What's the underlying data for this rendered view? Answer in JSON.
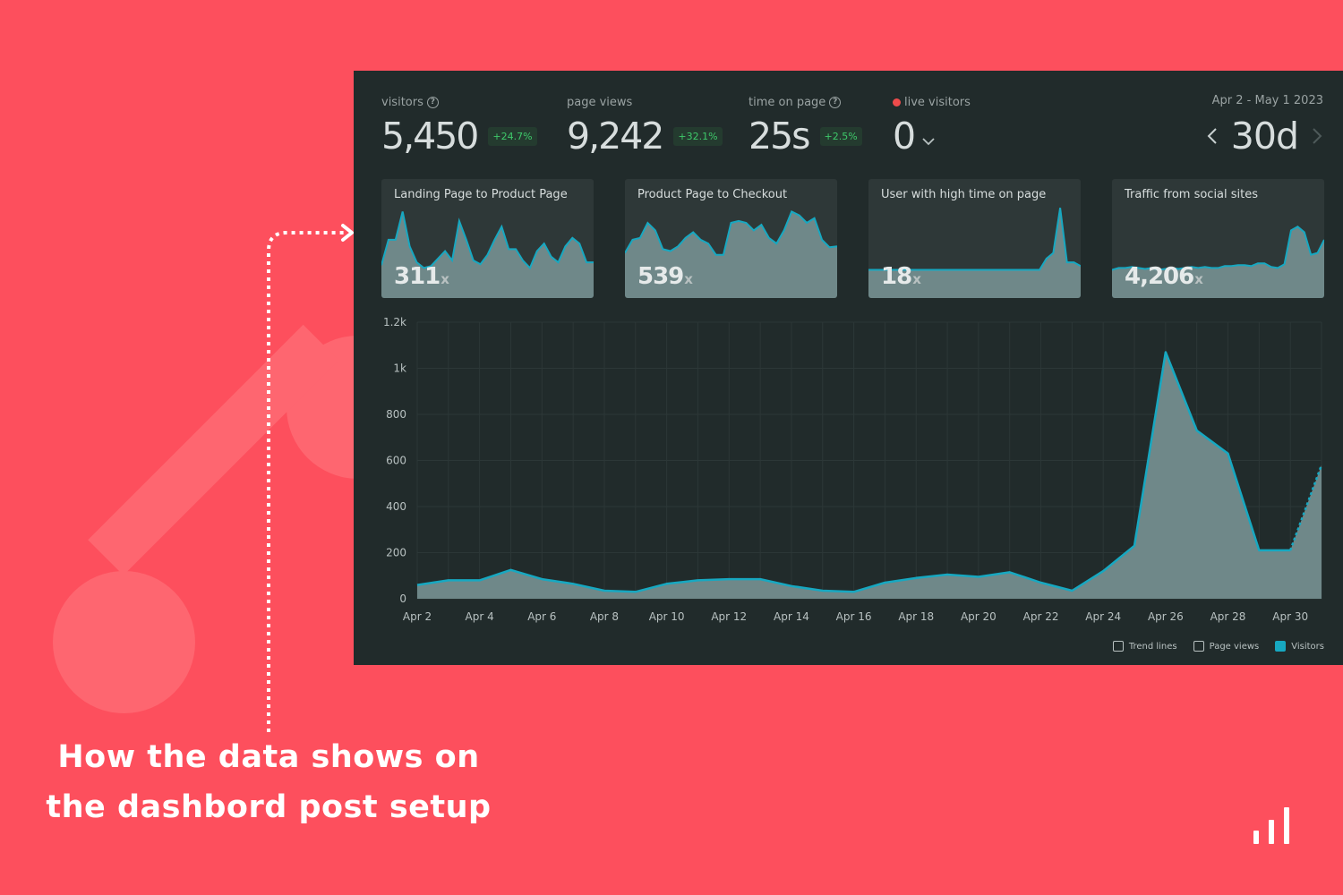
{
  "caption": {
    "line1": "How the data shows on",
    "line2": "the dashbord post setup"
  },
  "colors": {
    "background": "#fd4f5d",
    "dashboard_bg": "#212b2b",
    "accent_line": "#17a8c1",
    "area_fill": "#6f8889",
    "positive": "#3ec96a",
    "live": "#ee4b4b"
  },
  "stats": [
    {
      "label": "visitors",
      "value": "5,450",
      "change": "+24.7%",
      "help_icon": "question-circle-icon"
    },
    {
      "label": "page views",
      "value": "9,242",
      "change": "+32.1%"
    },
    {
      "label": "time on page",
      "value": "25s",
      "change": "+2.5%",
      "help_icon": "question-circle-icon"
    },
    {
      "label": "live visitors",
      "value": "0",
      "indicator": "red-dot",
      "dropdown_icon": "chevron-down-icon"
    }
  ],
  "period": {
    "range": "Apr 2 - May 1 2023",
    "value": "30d",
    "prev_icon": "chevron-left-icon",
    "next_icon": "chevron-right-icon"
  },
  "mini_cards": [
    {
      "title": "Landing Page to Product Page",
      "value": "311",
      "suffix": "x",
      "sparkline": [
        0.35,
        0.62,
        0.62,
        0.92,
        0.55,
        0.38,
        0.32,
        0.34,
        0.42,
        0.5,
        0.4,
        0.82,
        0.62,
        0.4,
        0.36,
        0.46,
        0.62,
        0.76,
        0.52,
        0.52,
        0.4,
        0.32,
        0.5,
        0.58,
        0.44,
        0.38,
        0.55,
        0.64,
        0.58,
        0.38,
        0.38
      ]
    },
    {
      "title": "Product Page to Checkout",
      "value": "539",
      "suffix": "x",
      "sparkline": [
        0.48,
        0.62,
        0.64,
        0.8,
        0.72,
        0.52,
        0.5,
        0.55,
        0.64,
        0.7,
        0.62,
        0.58,
        0.46,
        0.46,
        0.8,
        0.82,
        0.8,
        0.72,
        0.78,
        0.64,
        0.58,
        0.72,
        0.92,
        0.88,
        0.8,
        0.85,
        0.62,
        0.54,
        0.55
      ]
    },
    {
      "title": "User with high time on page",
      "value": "18",
      "suffix": "x",
      "sparkline": [
        0.3,
        0.3,
        0.3,
        0.3,
        0.3,
        0.3,
        0.3,
        0.3,
        0.3,
        0.3,
        0.3,
        0.3,
        0.3,
        0.3,
        0.3,
        0.3,
        0.3,
        0.3,
        0.3,
        0.3,
        0.3,
        0.3,
        0.3,
        0.3,
        0.3,
        0.3,
        0.42,
        0.48,
        0.96,
        0.38,
        0.38,
        0.34
      ]
    },
    {
      "title": "Traffic from social sites",
      "value": "4,206",
      "suffix": "x",
      "sparkline": [
        0.3,
        0.32,
        0.32,
        0.33,
        0.32,
        0.31,
        0.32,
        0.3,
        0.31,
        0.32,
        0.31,
        0.32,
        0.33,
        0.32,
        0.33,
        0.32,
        0.32,
        0.34,
        0.34,
        0.35,
        0.35,
        0.34,
        0.37,
        0.37,
        0.33,
        0.32,
        0.36,
        0.72,
        0.76,
        0.7,
        0.46,
        0.48,
        0.62
      ]
    }
  ],
  "chart_data": {
    "type": "area",
    "x": [
      "Apr 2",
      "Apr 3",
      "Apr 4",
      "Apr 5",
      "Apr 6",
      "Apr 7",
      "Apr 8",
      "Apr 9",
      "Apr 10",
      "Apr 11",
      "Apr 12",
      "Apr 13",
      "Apr 14",
      "Apr 15",
      "Apr 16",
      "Apr 17",
      "Apr 18",
      "Apr 19",
      "Apr 20",
      "Apr 21",
      "Apr 22",
      "Apr 23",
      "Apr 24",
      "Apr 25",
      "Apr 26",
      "Apr 27",
      "Apr 28",
      "Apr 29",
      "Apr 30",
      "May 1"
    ],
    "x_tick_labels": [
      "Apr 2",
      "Apr 4",
      "Apr 6",
      "Apr 8",
      "Apr 10",
      "Apr 12",
      "Apr 14",
      "Apr 16",
      "Apr 18",
      "Apr 20",
      "Apr 22",
      "Apr 24",
      "Apr 26",
      "Apr 28",
      "Apr 30"
    ],
    "series": [
      {
        "name": "Visitors",
        "values": [
          60,
          80,
          80,
          125,
          85,
          65,
          35,
          30,
          65,
          80,
          85,
          85,
          55,
          35,
          30,
          70,
          90,
          105,
          95,
          115,
          70,
          35,
          120,
          230,
          1070,
          730,
          630,
          210,
          210,
          580
        ]
      }
    ],
    "ylim": [
      0,
      1200
    ],
    "y_ticks": [
      0,
      200,
      400,
      600,
      800,
      1000,
      1200
    ],
    "y_tick_labels": [
      "0",
      "200",
      "400",
      "600",
      "800",
      "1k",
      "1.2k"
    ],
    "dashed_last_segment": true,
    "grid": true,
    "legend_position": "bottom-right"
  },
  "legend": [
    {
      "label": "Trend lines",
      "checked": false
    },
    {
      "label": "Page views",
      "checked": false
    },
    {
      "label": "Visitors",
      "checked": true
    }
  ],
  "brand_icon": "bar-chart-logo-icon"
}
